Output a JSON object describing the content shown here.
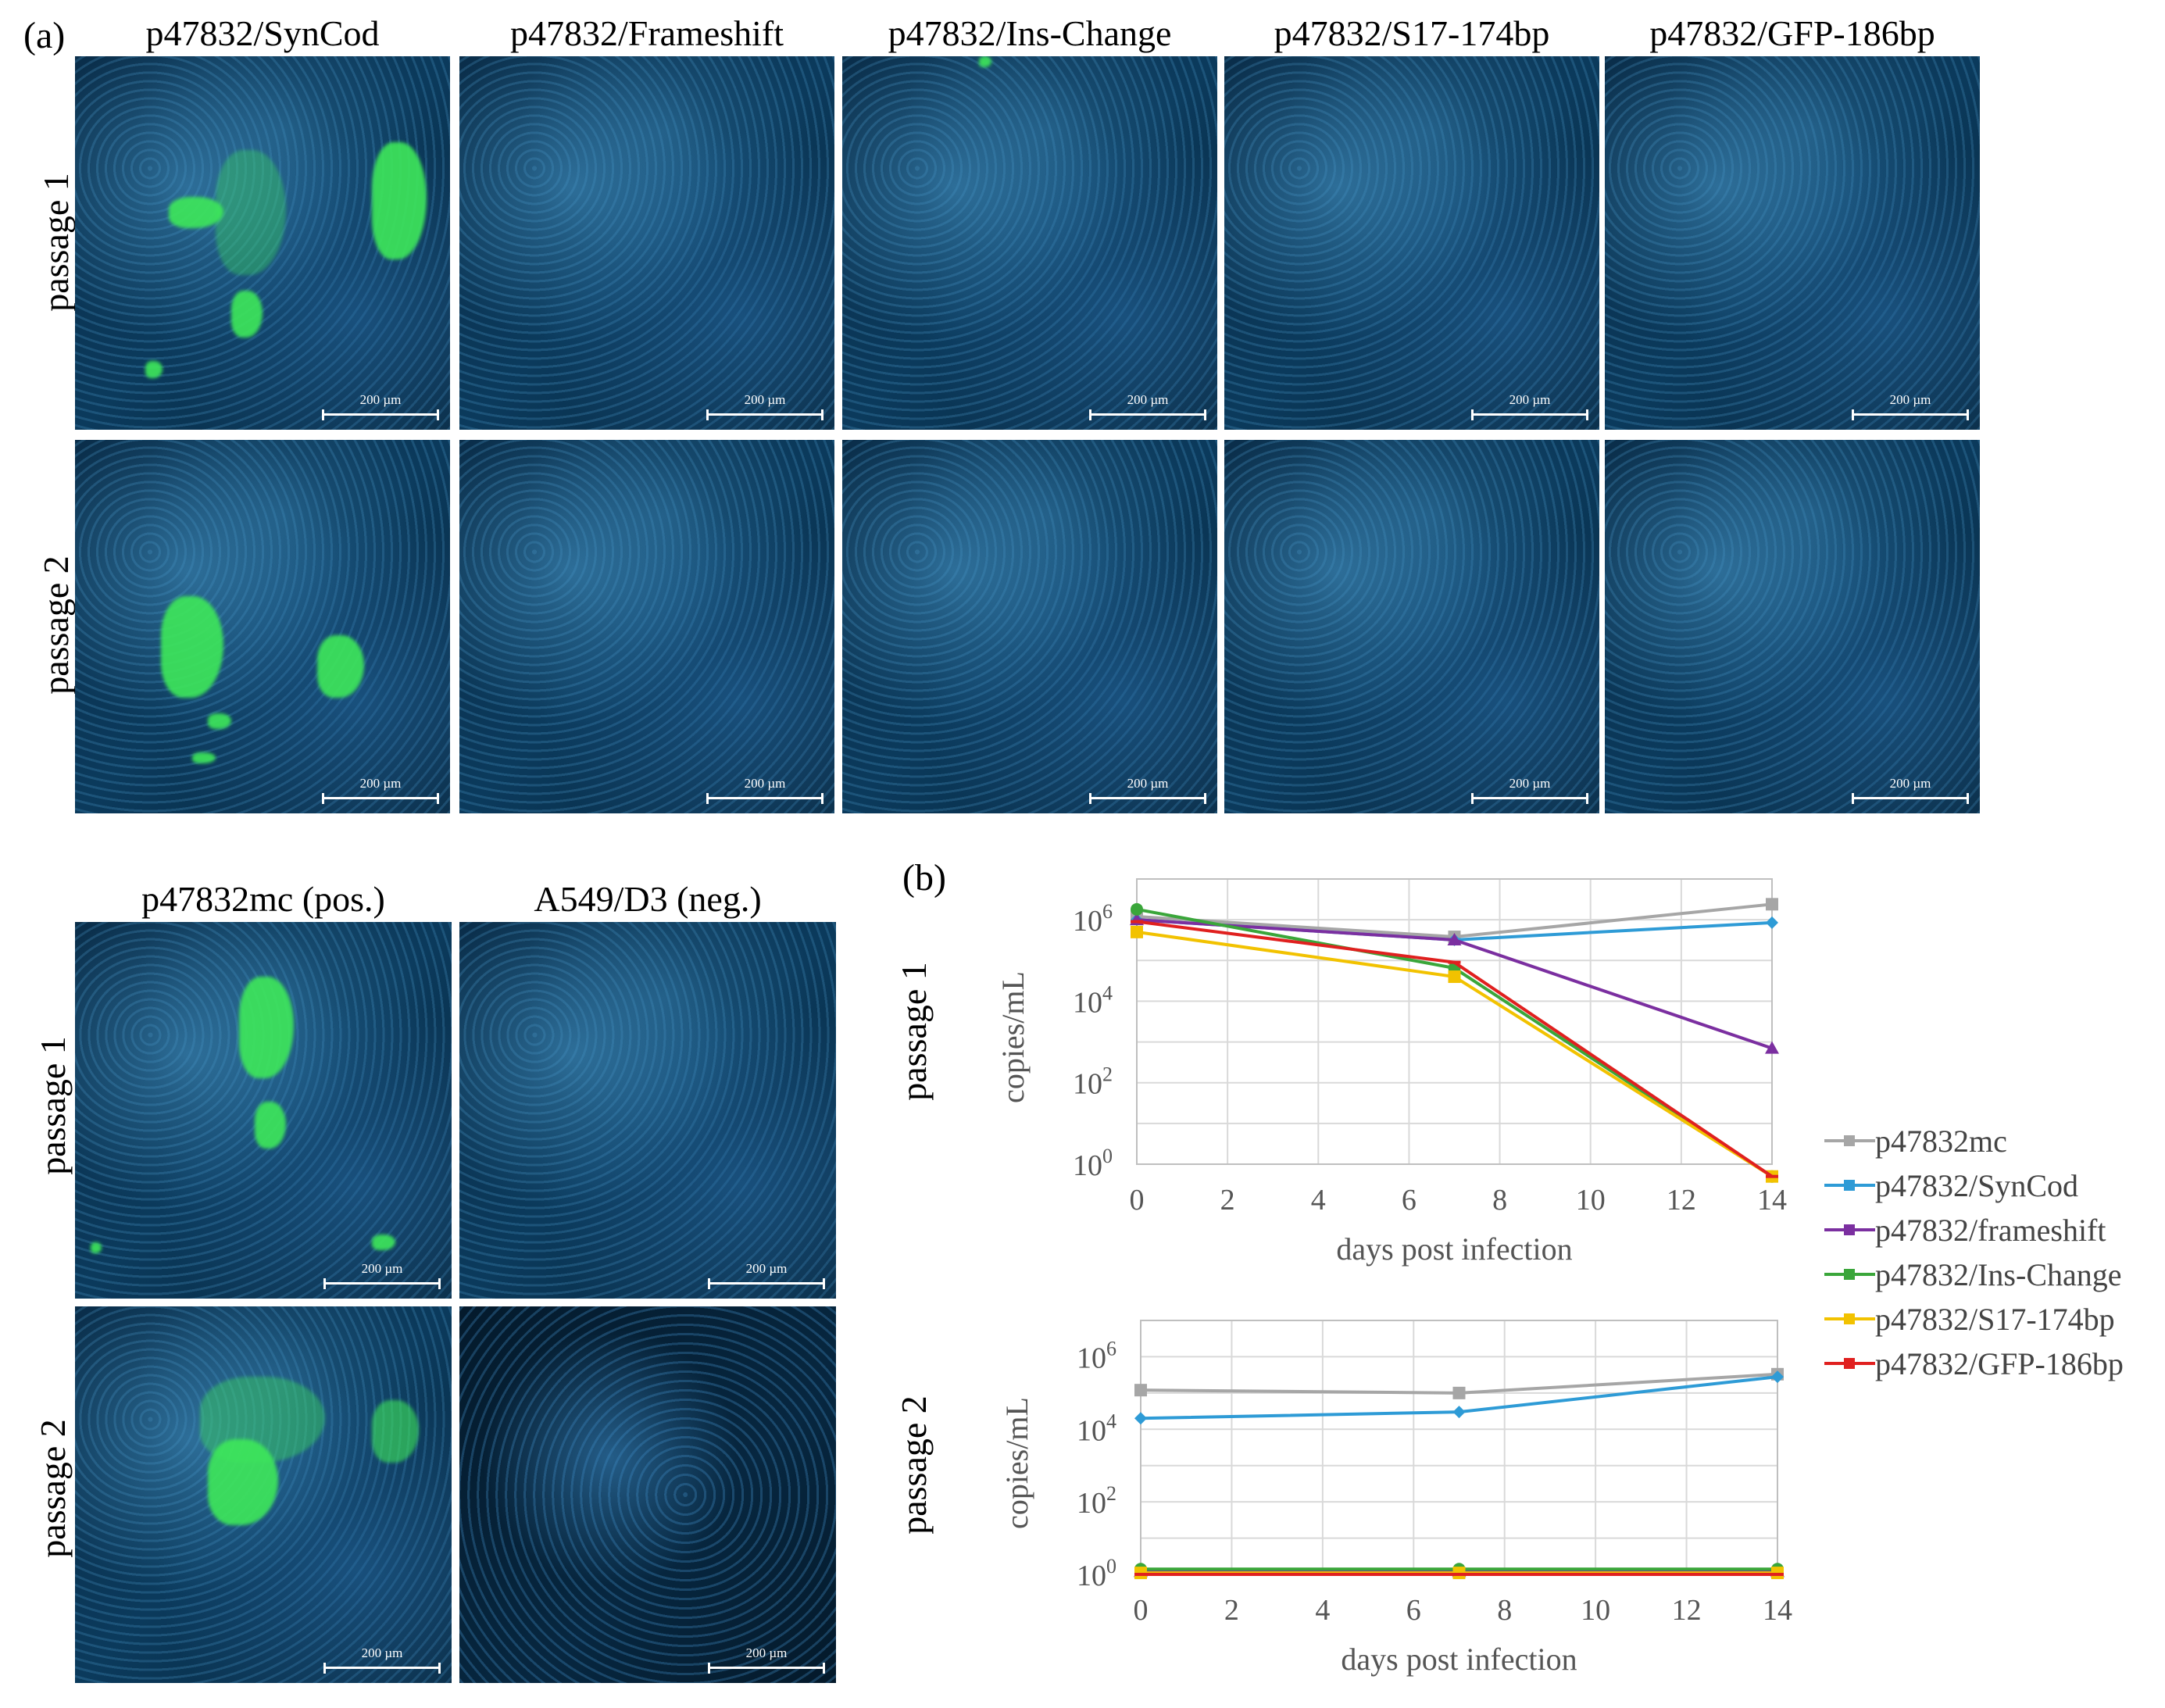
{
  "figure": {
    "panel_a_label": "(a)",
    "panel_b_label": "(b)",
    "scale_bar_label": "200 µm",
    "columns": [
      "p47832/SynCod",
      "p47832/Frameshift",
      "p47832/Ins-Change",
      "p47832/S17-174bp",
      "p47832/GFP-186bp"
    ],
    "controls": [
      "p47832mc (pos.)",
      "A549/D3 (neg.)"
    ],
    "row_labels": [
      "passage 1",
      "passage 2"
    ]
  },
  "chart_data": [
    {
      "type": "line",
      "title": "passage 1",
      "xlabel": "days post infection",
      "ylabel": "copies/mL",
      "yscale": "log",
      "xlim": [
        0,
        14
      ],
      "ylim_exponent": [
        0,
        7
      ],
      "x": [
        0,
        7,
        14
      ],
      "xticks": [
        "0",
        "2",
        "4",
        "6",
        "8",
        "10",
        "12",
        "14"
      ],
      "yticks": [
        "10",
        "10",
        "10",
        "10"
      ],
      "ytick_exponents": [
        "0",
        "2",
        "4",
        "6"
      ],
      "series": [
        {
          "name": "p47832mc",
          "color": "#a6a6a6",
          "marker": "square",
          "values": [
            1200000,
            380000,
            2400000
          ]
        },
        {
          "name": "p47832/SynCod",
          "color": "#2e9bd6",
          "marker": "diamond",
          "values": [
            1000000,
            320000,
            850000
          ]
        },
        {
          "name": "p47832/frameshift",
          "color": "#7b2fa0",
          "marker": "triangle",
          "values": [
            1000000,
            320000,
            700
          ]
        },
        {
          "name": "p47832/Ins-Change",
          "color": "#3aa63a",
          "marker": "circle",
          "values": [
            1800000,
            65000,
            0.5
          ]
        },
        {
          "name": "p47832/S17-174bp",
          "color": "#f2c200",
          "marker": "square",
          "values": [
            500000,
            40000,
            0.5
          ]
        },
        {
          "name": "p47832/GFP-186bp",
          "color": "#e0201f",
          "marker": "line",
          "values": [
            900000,
            90000,
            0.5
          ]
        }
      ]
    },
    {
      "type": "line",
      "title": "passage 2",
      "xlabel": "days post infection",
      "ylabel": "copies/mL",
      "yscale": "log",
      "xlim": [
        0,
        14
      ],
      "ylim_exponent": [
        0,
        7
      ],
      "x": [
        0,
        7,
        14
      ],
      "xticks": [
        "0",
        "2",
        "4",
        "6",
        "8",
        "10",
        "12",
        "14"
      ],
      "yticks": [
        "10",
        "10",
        "10",
        "10"
      ],
      "ytick_exponents": [
        "0",
        "2",
        "4",
        "6"
      ],
      "series": [
        {
          "name": "p47832mc",
          "color": "#a6a6a6",
          "marker": "square",
          "values": [
            120000,
            100000,
            330000
          ]
        },
        {
          "name": "p47832/SynCod",
          "color": "#2e9bd6",
          "marker": "diamond",
          "values": [
            20000,
            30000,
            280000
          ]
        },
        {
          "name": "p47832/frameshift",
          "color": "#7b2fa0",
          "marker": "triangle",
          "values": [
            1.2,
            1.2,
            1.2
          ]
        },
        {
          "name": "p47832/Ins-Change",
          "color": "#3aa63a",
          "marker": "circle",
          "values": [
            1.4,
            1.4,
            1.4
          ]
        },
        {
          "name": "p47832/S17-174bp",
          "color": "#f2c200",
          "marker": "square",
          "values": [
            1.1,
            1.1,
            1.1
          ]
        },
        {
          "name": "p47832/GFP-186bp",
          "color": "#e0201f",
          "marker": "line",
          "values": [
            1.0,
            1.0,
            1.0
          ]
        }
      ]
    }
  ]
}
